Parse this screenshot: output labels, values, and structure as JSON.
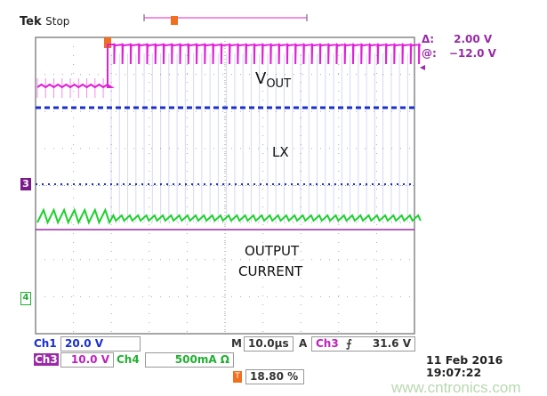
{
  "header": {
    "brand": "Tek",
    "status": "Stop"
  },
  "cursor_readout": {
    "delta": "Δ:",
    "delta_value": "2.00 V",
    "at": "@:",
    "at_value": "−12.0 V"
  },
  "labels": {
    "vout_main": "V",
    "vout_sub": "OUT",
    "lx": "LX",
    "output_current_1": "OUTPUT",
    "output_current_2": "CURRENT"
  },
  "markers": {
    "ch3": "3",
    "ch4": "4",
    "trigger": "T"
  },
  "bottom": {
    "ch1_label": "Ch1",
    "ch1_scale": "20.0 V",
    "ch3_label": "Ch3",
    "ch3_scale": "10.0 V",
    "ch4_label": "Ch4",
    "ch4_scale": "500mA Ω",
    "timebase_label": "M",
    "timebase": "10.0µs",
    "trigger_mode": "A",
    "trigger_source": "Ch3",
    "trigger_slope": "⨍",
    "trigger_level": "31.6 V",
    "trigger_position": "18.80 %",
    "date": "11 Feb  2016",
    "time": "19:07:22"
  },
  "watermark": "www.cntronics.com",
  "colors": {
    "ch1": "#1a2fd0",
    "ch3": "#e020d8",
    "ch4": "#20d030",
    "ref": "#9a2aa8",
    "trigger": "#f07020"
  }
}
